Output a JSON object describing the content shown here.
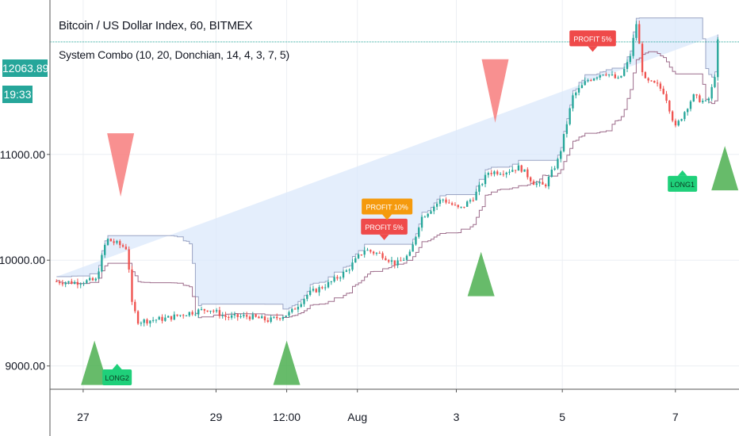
{
  "header": {
    "title": "Bitcoin / US Dollar Index, 60, BITMEX",
    "subtitle": "System Combo (10, 20, Donchian, 14, 4, 3, 7, 5)"
  },
  "last_price": {
    "value": 12063.89,
    "label": "12063.89",
    "countdown": "19:33"
  },
  "colors": {
    "up": "#26a69a",
    "down": "#ef5350",
    "band_fill": "#dbe8fb",
    "band_edge": "#9aa4c4",
    "mid_line": "#9c6b8a",
    "long_triangle": "#4caf50",
    "short_triangle": "#f77c7c",
    "profit_red": "#ef4a4a",
    "profit_orange": "#f59a0d",
    "long_badge": "#1fd07a"
  },
  "chart_data": {
    "type": "candlestick",
    "y_ticks": [
      {
        "value": 11000,
        "label": "11000.00"
      },
      {
        "value": 10000,
        "label": "10000.00"
      },
      {
        "value": 9000,
        "label": "9000.00"
      }
    ],
    "ylim": [
      8780,
      12460
    ],
    "x_ticks": [
      {
        "t": 0.12,
        "label": "27"
      },
      {
        "t": 2.0,
        "label": "29"
      },
      {
        "t": 3.0,
        "label": "12:00"
      },
      {
        "t": 4.0,
        "label": "Aug"
      },
      {
        "t": 5.4,
        "label": "3"
      },
      {
        "t": 6.9,
        "label": "5"
      },
      {
        "t": 8.5,
        "label": "7"
      }
    ],
    "xlim": [
      -0.35,
      9.4
    ],
    "price_path": [
      [
        -0.3,
        9800
      ],
      [
        0.0,
        9790
      ],
      [
        0.3,
        9810
      ],
      [
        0.45,
        10200
      ],
      [
        0.75,
        10110
      ],
      [
        0.8,
        9600
      ],
      [
        0.9,
        9420
      ],
      [
        1.3,
        9450
      ],
      [
        1.6,
        9500
      ],
      [
        1.9,
        9540
      ],
      [
        2.15,
        9460
      ],
      [
        2.45,
        9470
      ],
      [
        2.75,
        9430
      ],
      [
        3.05,
        9500
      ],
      [
        3.3,
        9680
      ],
      [
        3.6,
        9780
      ],
      [
        3.85,
        9900
      ],
      [
        4.1,
        10100
      ],
      [
        4.35,
        10050
      ],
      [
        4.55,
        9960
      ],
      [
        4.75,
        10060
      ],
      [
        4.9,
        10400
      ],
      [
        5.2,
        10580
      ],
      [
        5.45,
        10480
      ],
      [
        5.65,
        10600
      ],
      [
        5.85,
        10830
      ],
      [
        6.1,
        10840
      ],
      [
        6.3,
        10880
      ],
      [
        6.5,
        10730
      ],
      [
        6.65,
        10700
      ],
      [
        6.85,
        10960
      ],
      [
        7.05,
        11550
      ],
      [
        7.25,
        11700
      ],
      [
        7.5,
        11780
      ],
      [
        7.7,
        11700
      ],
      [
        7.85,
        11900
      ],
      [
        7.95,
        12250
      ],
      [
        8.05,
        11700
      ],
      [
        8.25,
        11650
      ],
      [
        8.35,
        11580
      ],
      [
        8.5,
        11250
      ],
      [
        8.75,
        11550
      ],
      [
        8.95,
        11480
      ],
      [
        9.05,
        11700
      ],
      [
        9.1,
        12063
      ]
    ],
    "triangles": [
      {
        "t": 0.28,
        "price": 8820,
        "direction": "up"
      },
      {
        "t": 0.65,
        "price": 10600,
        "direction": "down"
      },
      {
        "t": 3.0,
        "price": 8820,
        "direction": "up"
      },
      {
        "t": 5.75,
        "price": 9660,
        "direction": "up"
      },
      {
        "t": 5.95,
        "price": 11300,
        "direction": "down"
      },
      {
        "t": 9.2,
        "price": 10660,
        "direction": "up"
      }
    ],
    "labels": [
      {
        "t": 0.6,
        "price": 9020,
        "text": "LONG2",
        "kind": "long",
        "pointer": "up"
      },
      {
        "t": 4.38,
        "price": 10190,
        "text": "PROFIT 5%",
        "kind": "profit_red",
        "pointer": "down"
      },
      {
        "t": 4.42,
        "price": 10380,
        "text": "PROFIT 10%",
        "kind": "profit_orange",
        "pointer": "down"
      },
      {
        "t": 7.33,
        "price": 11970,
        "text": "PROFIT 5%",
        "kind": "profit_red",
        "pointer": "down"
      },
      {
        "t": 8.6,
        "price": 10850,
        "text": "LONG1",
        "kind": "long",
        "pointer": "up"
      }
    ]
  }
}
